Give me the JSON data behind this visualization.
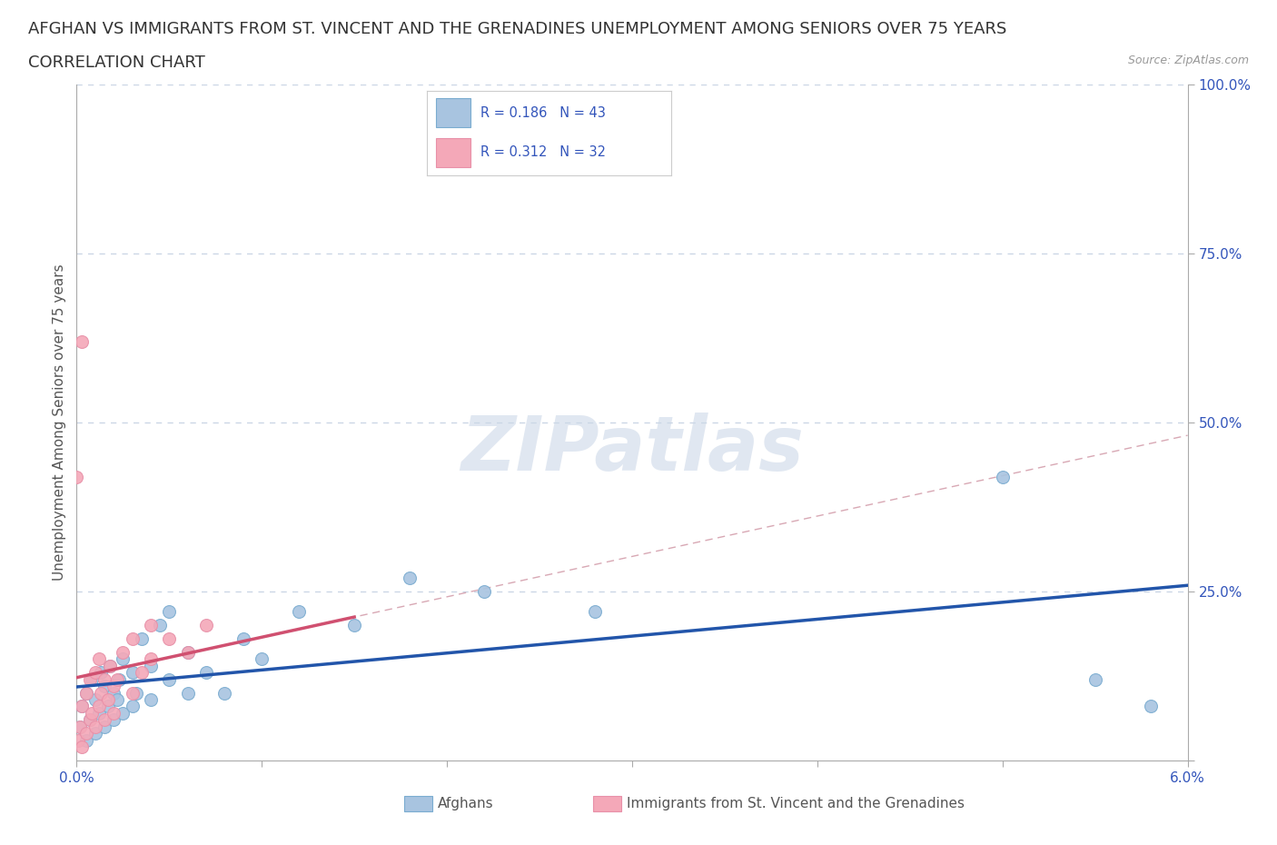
{
  "title_line1": "AFGHAN VS IMMIGRANTS FROM ST. VINCENT AND THE GRENADINES UNEMPLOYMENT AMONG SENIORS OVER 75 YEARS",
  "title_line2": "CORRELATION CHART",
  "source": "Source: ZipAtlas.com",
  "ylabel": "Unemployment Among Seniors over 75 years",
  "xlim": [
    0.0,
    0.06
  ],
  "ylim": [
    0.0,
    1.0
  ],
  "xtick_positions": [
    0.0,
    0.01,
    0.02,
    0.03,
    0.04,
    0.05,
    0.06
  ],
  "xticklabels": [
    "0.0%",
    "",
    "",
    "",
    "",
    "",
    "6.0%"
  ],
  "ytick_positions": [
    0.0,
    0.25,
    0.5,
    0.75,
    1.0
  ],
  "yticklabels": [
    "",
    "25.0%",
    "50.0%",
    "75.0%",
    "100.0%"
  ],
  "afghan_R": 0.186,
  "afghan_N": 43,
  "svg_R": 0.312,
  "svg_N": 32,
  "legend_label_1": "Afghans",
  "legend_label_2": "Immigrants from St. Vincent and the Grenadines",
  "afghan_color": "#a8c4e0",
  "svg_color": "#f4a8b8",
  "afghan_edge_color": "#7aacd0",
  "svg_edge_color": "#e890a8",
  "afghan_line_color": "#2255aa",
  "svg_line_color": "#d05070",
  "svg_dash_color": "#d090a0",
  "watermark": "ZIPatlas",
  "watermark_color": "#ccd8e8",
  "label_color": "#3355bb",
  "tick_color": "#3355bb",
  "background_color": "#ffffff",
  "grid_color": "#c8d4e4",
  "title_fontsize": 13,
  "axis_label_fontsize": 11,
  "tick_fontsize": 11,
  "afghan_x": [
    0.0002,
    0.0003,
    0.0005,
    0.0005,
    0.0007,
    0.0008,
    0.001,
    0.001,
    0.0012,
    0.0013,
    0.0015,
    0.0015,
    0.0017,
    0.0018,
    0.002,
    0.002,
    0.0022,
    0.0023,
    0.0025,
    0.0025,
    0.003,
    0.003,
    0.0032,
    0.0035,
    0.004,
    0.004,
    0.0045,
    0.005,
    0.005,
    0.006,
    0.006,
    0.007,
    0.008,
    0.009,
    0.01,
    0.012,
    0.015,
    0.018,
    0.022,
    0.028,
    0.05,
    0.055,
    0.058
  ],
  "afghan_y": [
    0.05,
    0.08,
    0.03,
    0.1,
    0.06,
    0.12,
    0.04,
    0.09,
    0.07,
    0.13,
    0.05,
    0.11,
    0.08,
    0.14,
    0.06,
    0.1,
    0.09,
    0.12,
    0.07,
    0.15,
    0.08,
    0.13,
    0.1,
    0.18,
    0.09,
    0.14,
    0.2,
    0.12,
    0.22,
    0.1,
    0.16,
    0.13,
    0.1,
    0.18,
    0.15,
    0.22,
    0.2,
    0.27,
    0.25,
    0.22,
    0.42,
    0.12,
    0.08
  ],
  "svg_x": [
    0.0001,
    0.0002,
    0.0003,
    0.0003,
    0.0005,
    0.0005,
    0.0007,
    0.0007,
    0.0008,
    0.001,
    0.001,
    0.0012,
    0.0012,
    0.0013,
    0.0015,
    0.0015,
    0.0017,
    0.0018,
    0.002,
    0.002,
    0.0022,
    0.0025,
    0.003,
    0.003,
    0.0035,
    0.004,
    0.004,
    0.005,
    0.006,
    0.007,
    0.0003,
    0.0
  ],
  "svg_y": [
    0.03,
    0.05,
    0.02,
    0.08,
    0.04,
    0.1,
    0.06,
    0.12,
    0.07,
    0.05,
    0.13,
    0.08,
    0.15,
    0.1,
    0.06,
    0.12,
    0.09,
    0.14,
    0.07,
    0.11,
    0.12,
    0.16,
    0.1,
    0.18,
    0.13,
    0.15,
    0.2,
    0.18,
    0.16,
    0.2,
    0.62,
    0.42
  ]
}
